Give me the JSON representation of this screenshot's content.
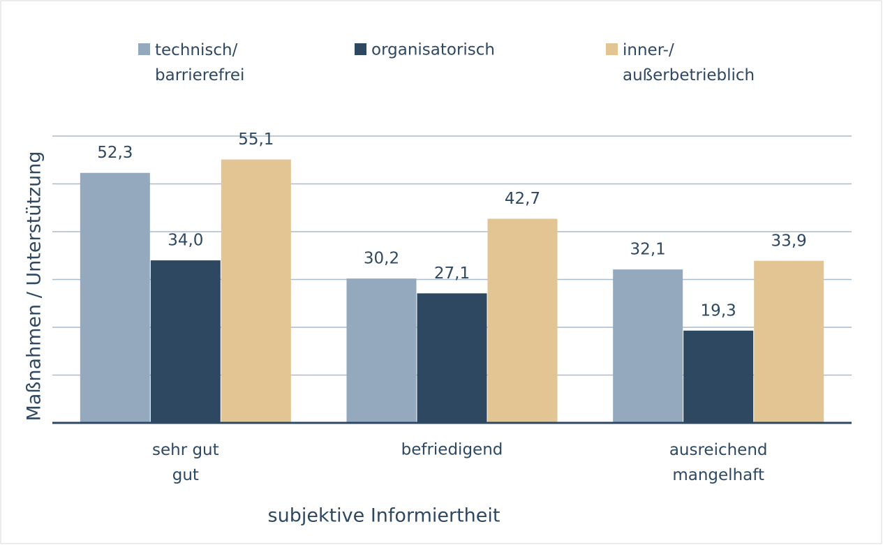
{
  "chart_data": {
    "type": "bar",
    "x_label": "subjektive Informiertheit",
    "y_label": "Maßnahmen / Unterstützung",
    "categories": [
      "sehr gut\ngut",
      "befriedigend",
      "ausreichend\nmangelhaft"
    ],
    "series": [
      {
        "name": "technisch/\nbarrierefrei",
        "color": "#94a9be",
        "values": [
          52.3,
          30.2,
          32.1
        ],
        "value_labels": [
          "52,3",
          "30,2",
          "32,1"
        ]
      },
      {
        "name": "organisatorisch",
        "color": "#2e4862",
        "values": [
          34.0,
          27.1,
          19.3
        ],
        "value_labels": [
          "34,0",
          "27,1",
          "19,3"
        ]
      },
      {
        "name": "inner-/\naußerbetrieblich",
        "color": "#e2c593",
        "values": [
          55.1,
          42.7,
          33.9
        ],
        "value_labels": [
          "55,1",
          "42,7",
          "33,9"
        ]
      }
    ],
    "ylim": [
      0,
      60
    ],
    "yticks": [
      0,
      10,
      20,
      30,
      40,
      50,
      60
    ],
    "grid": true,
    "legend": "top"
  }
}
